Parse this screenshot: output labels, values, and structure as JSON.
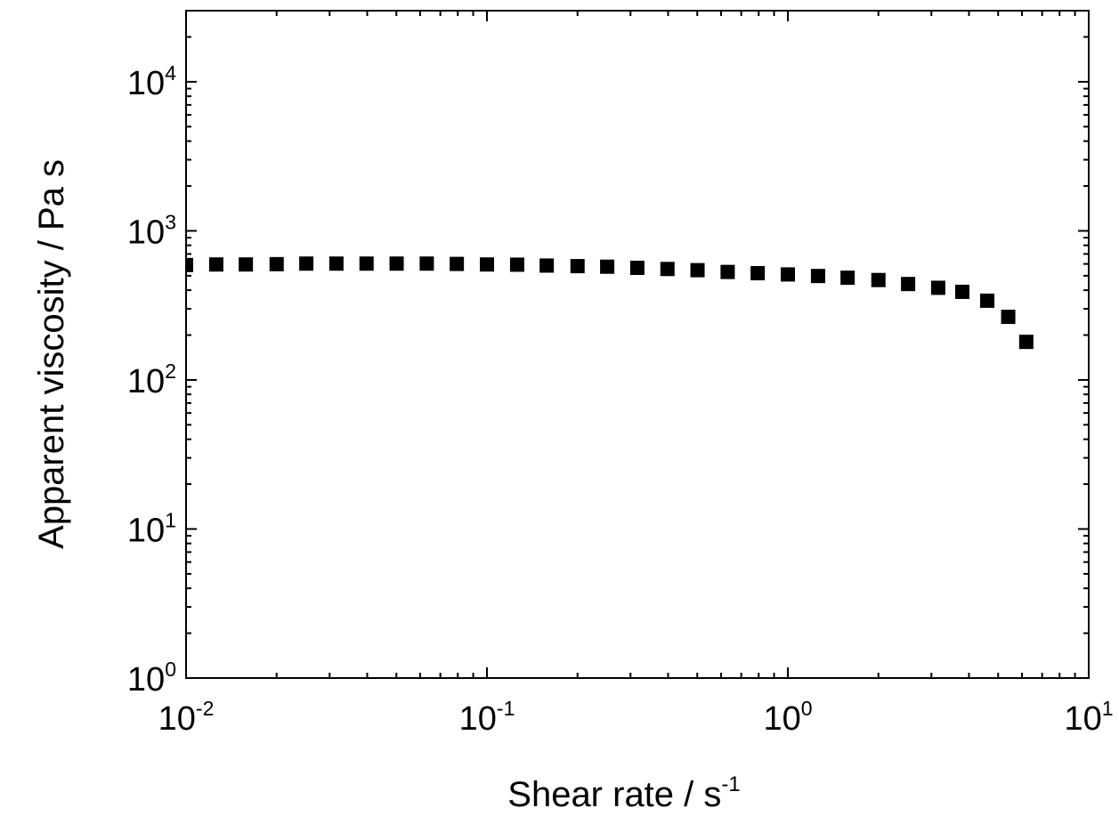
{
  "chart_data": {
    "type": "scatter",
    "title": "",
    "x_axis": {
      "label": "Shear rate / s",
      "label_superscript": "-1",
      "scale": "log",
      "range": [
        0.01,
        10
      ],
      "ticks": [
        {
          "value": 0.01,
          "base": "10",
          "exp": "-2"
        },
        {
          "value": 0.1,
          "base": "10",
          "exp": "-1"
        },
        {
          "value": 1,
          "base": "10",
          "exp": "0"
        },
        {
          "value": 10,
          "base": "10",
          "exp": "1"
        }
      ]
    },
    "y_axis": {
      "label": "Apparent viscosity / Pa s",
      "scale": "log",
      "range": [
        1,
        30000
      ],
      "ticks": [
        {
          "value": 1,
          "base": "10",
          "exp": "0"
        },
        {
          "value": 10,
          "base": "10",
          "exp": "1"
        },
        {
          "value": 100,
          "base": "10",
          "exp": "2"
        },
        {
          "value": 1000,
          "base": "10",
          "exp": "3"
        },
        {
          "value": 10000,
          "base": "10",
          "exp": "4"
        }
      ]
    },
    "grid": false,
    "legend": null,
    "marker": {
      "shape": "square",
      "color": "#000000"
    },
    "series": [
      {
        "x": [
          0.01,
          0.0126,
          0.0158,
          0.02,
          0.0251,
          0.0316,
          0.0398,
          0.0501,
          0.0631,
          0.0794,
          0.1,
          0.126,
          0.158,
          0.2,
          0.251,
          0.316,
          0.398,
          0.501,
          0.631,
          0.794,
          1.0,
          1.26,
          1.58,
          2.0,
          2.51,
          3.16,
          3.8,
          4.6,
          5.4,
          6.2
        ],
        "y": [
          590,
          595,
          595,
          598,
          603,
          603,
          603,
          603,
          603,
          600,
          595,
          593,
          585,
          580,
          575,
          565,
          555,
          545,
          530,
          520,
          510,
          498,
          485,
          468,
          440,
          415,
          390,
          340,
          265,
          180
        ]
      }
    ]
  }
}
